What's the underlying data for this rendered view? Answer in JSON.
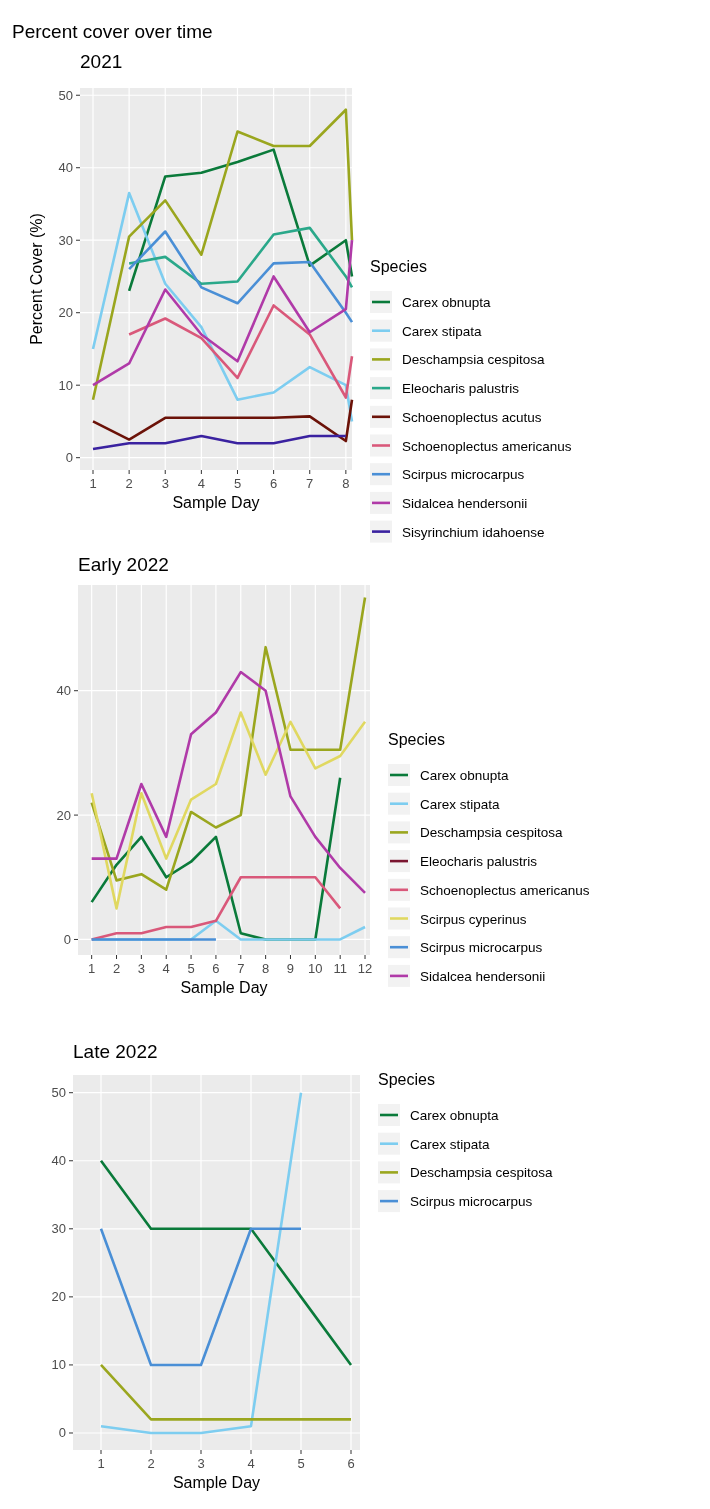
{
  "chart_data": [
    {
      "type": "line",
      "title": "Percent cover over time",
      "subtitle": "2021",
      "xlabel": "Sample Day",
      "ylabel": "Percent Cover (%)",
      "legend_title": "Species",
      "legend": "right",
      "grid": true,
      "x": [
        1,
        2,
        3,
        4,
        5,
        6,
        7,
        8,
        8.17
      ],
      "xlim": [
        0.64,
        8.17
      ],
      "xticks": [
        1,
        2,
        3,
        4,
        5,
        6,
        7,
        8
      ],
      "ylim": [
        -1.7,
        51
      ],
      "yticks": [
        0,
        10,
        20,
        30,
        40,
        50
      ],
      "series": [
        {
          "name": "Carex obnupta",
          "color": "#0a7a3a",
          "values": [
            null,
            23,
            38.8,
            39.3,
            40.8,
            42.5,
            26.5,
            30,
            25
          ]
        },
        {
          "name": "Carex stipata",
          "color": "#7dcdf0",
          "values": [
            15,
            36.5,
            24,
            18,
            8,
            9,
            12.5,
            10,
            5
          ]
        },
        {
          "name": "Deschampsia cespitosa",
          "color": "#9aa61e",
          "values": [
            8,
            30.5,
            35.5,
            28,
            45,
            43,
            43,
            48,
            30
          ]
        },
        {
          "name": "Eleocharis palustris",
          "color": "#2aa88a",
          "values": [
            null,
            26.8,
            27.7,
            24,
            24.3,
            30.8,
            31.7,
            25,
            23.5
          ]
        },
        {
          "name": "Schoenoplectus acutus",
          "color": "#6b1208",
          "values": [
            5,
            2.5,
            5.5,
            5.5,
            5.5,
            5.5,
            5.7,
            2.3,
            8
          ]
        },
        {
          "name": "Schoenoplectus americanus",
          "color": "#d9587a",
          "values": [
            null,
            17,
            19.2,
            16.5,
            11,
            21,
            17,
            8.3,
            14
          ]
        },
        {
          "name": "Scirpus microcarpus",
          "color": "#4a8fd6",
          "values": [
            null,
            26,
            31.2,
            23.5,
            21.3,
            26.8,
            27,
            20,
            18.7
          ]
        },
        {
          "name": "Sidalcea hendersonii",
          "color": "#b03aa8",
          "values": [
            10,
            13,
            23.2,
            17,
            13.3,
            25,
            17.3,
            20.5,
            30
          ]
        },
        {
          "name": "Sisyrinchium idahoense",
          "color": "#3a22a0",
          "values": [
            1.2,
            2,
            2,
            3,
            2,
            2,
            3,
            3,
            null
          ]
        }
      ]
    },
    {
      "type": "line",
      "title": "Early 2022",
      "xlabel": "Sample Day",
      "legend_title": "Species",
      "legend": "right",
      "grid": true,
      "x": [
        1,
        2,
        3,
        4,
        5,
        6,
        7,
        8,
        9,
        10,
        11,
        12
      ],
      "xlim": [
        0.45,
        12.2
      ],
      "xticks": [
        1,
        2,
        3,
        4,
        5,
        6,
        7,
        8,
        9,
        10,
        11,
        12
      ],
      "ylim": [
        -2.5,
        57
      ],
      "yticks": [
        0,
        20,
        40
      ],
      "series": [
        {
          "name": "Carex obnupta",
          "color": "#0a7a3a",
          "values": [
            6,
            12,
            16.5,
            10,
            12.5,
            16.5,
            1,
            0,
            0,
            0,
            26,
            null
          ]
        },
        {
          "name": "Carex stipata",
          "color": "#7dcdf0",
          "values": [
            0,
            0,
            0,
            0,
            0,
            3,
            0,
            0,
            0,
            0,
            0,
            2
          ]
        },
        {
          "name": "Deschampsia cespitosa",
          "color": "#9aa61e",
          "values": [
            22,
            9.5,
            10.5,
            8,
            20.5,
            18,
            20,
            47,
            30.5,
            30.5,
            30.5,
            55
          ]
        },
        {
          "name": "Eleocharis palustris",
          "color": "#7a1530",
          "values": [
            null,
            null,
            null,
            null,
            null,
            null,
            null,
            null,
            null,
            null,
            null,
            null
          ]
        },
        {
          "name": "Schoenoplectus americanus",
          "color": "#d9587a",
          "values": [
            0,
            1,
            1,
            2,
            2,
            3,
            10,
            10,
            10,
            10,
            5,
            null
          ]
        },
        {
          "name": "Scirpus cyperinus",
          "color": "#e0d860",
          "values": [
            23.5,
            5,
            23.5,
            13,
            22.5,
            25,
            36.5,
            26.5,
            35,
            27.5,
            29.5,
            35
          ]
        },
        {
          "name": "Scirpus microcarpus",
          "color": "#4a8fd6",
          "values": [
            0,
            0,
            0,
            0,
            0,
            0,
            null,
            null,
            null,
            null,
            null,
            null
          ]
        },
        {
          "name": "Sidalcea hendersonii",
          "color": "#b03aa8",
          "values": [
            13,
            13,
            25,
            16.5,
            33,
            36.5,
            43,
            40,
            23,
            16.5,
            11.5,
            7.5
          ]
        }
      ]
    },
    {
      "type": "line",
      "title": "Late 2022",
      "xlabel": "Sample Day",
      "legend_title": "Species",
      "legend": "right",
      "grid": true,
      "x": [
        1,
        2,
        3,
        4,
        5,
        6
      ],
      "xlim": [
        0.44,
        6.18
      ],
      "xticks": [
        1,
        2,
        3,
        4,
        5,
        6
      ],
      "ylim": [
        -2.5,
        52.6
      ],
      "yticks": [
        0,
        10,
        20,
        30,
        40,
        50
      ],
      "series": [
        {
          "name": "Carex obnupta",
          "color": "#0a7a3a",
          "values": [
            40,
            30,
            30,
            30,
            20,
            10
          ]
        },
        {
          "name": "Carex stipata",
          "color": "#7dcdf0",
          "values": [
            1,
            0,
            0,
            1,
            50,
            null
          ]
        },
        {
          "name": "Deschampsia cespitosa",
          "color": "#9aa61e",
          "values": [
            10,
            2,
            2,
            2,
            2,
            2
          ]
        },
        {
          "name": "Scirpus microcarpus",
          "color": "#4a8fd6",
          "values": [
            30,
            10,
            10,
            30,
            30,
            null
          ]
        }
      ]
    }
  ]
}
